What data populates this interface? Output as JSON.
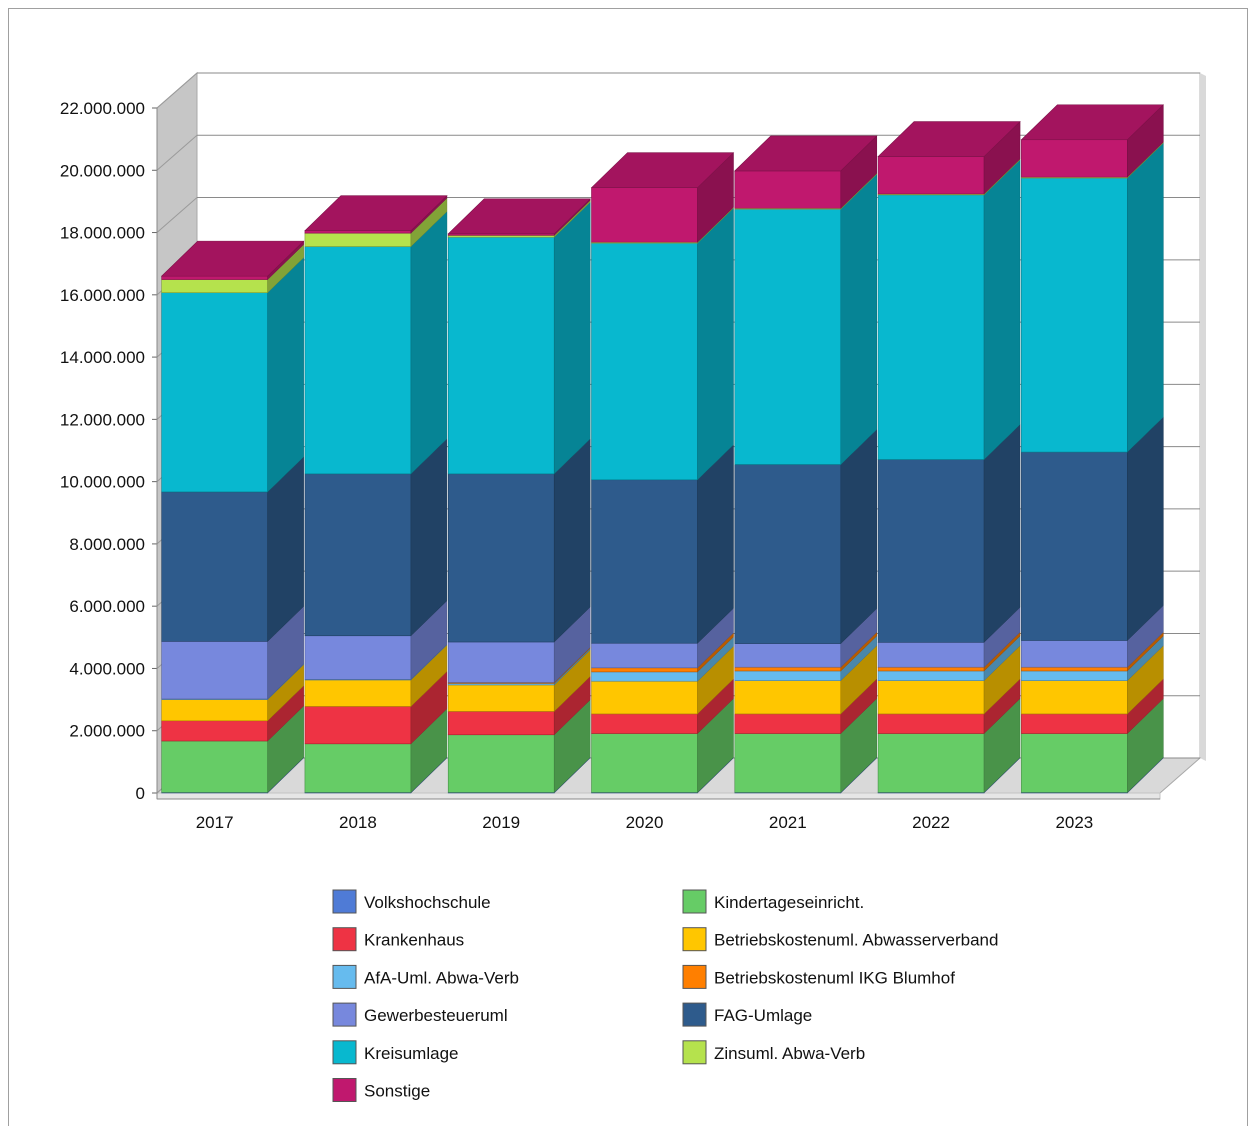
{
  "chart_data": {
    "type": "bar",
    "stacked": true,
    "three_d": true,
    "categories": [
      "2017",
      "2018",
      "2019",
      "2020",
      "2021",
      "2022",
      "2023"
    ],
    "ylim": [
      0,
      22000000
    ],
    "y_ticks": [
      0,
      2000000,
      4000000,
      6000000,
      8000000,
      10000000,
      12000000,
      14000000,
      16000000,
      18000000,
      20000000,
      22000000
    ],
    "y_tick_labels": [
      "0",
      "2.000.000",
      "4.000.000",
      "6.000.000",
      "8.000.000",
      "10.000.000",
      "12.000.000",
      "14.000.000",
      "16.000.000",
      "18.000.000",
      "20.000.000",
      "22.000.000"
    ],
    "grid": true,
    "legend_position": "bottom",
    "series": [
      {
        "name": "Volkshochschule",
        "color": "#4f7bd6",
        "values": [
          20000,
          20000,
          20000,
          20000,
          20000,
          20000,
          20000
        ]
      },
      {
        "name": "Kindertageseinricht.",
        "color": "#66cc66",
        "values": [
          1650000,
          1560000,
          1850000,
          1890000,
          1890000,
          1890000,
          1890000
        ]
      },
      {
        "name": "Krankenhaus",
        "color": "#ee3344",
        "values": [
          650000,
          1200000,
          750000,
          630000,
          630000,
          630000,
          630000
        ]
      },
      {
        "name": "Betriebskostenuml. Abwasserverband",
        "color": "#ffc600",
        "values": [
          680000,
          850000,
          850000,
          1050000,
          1070000,
          1070000,
          1070000
        ]
      },
      {
        "name": "AfA-Uml. Abwa-Verb",
        "color": "#66bbee",
        "values": [
          20000,
          20000,
          50000,
          300000,
          310000,
          310000,
          310000
        ]
      },
      {
        "name": "Betriebskostenuml IKG Blumhof",
        "color": "#ff7f00",
        "values": [
          0,
          0,
          30000,
          130000,
          120000,
          120000,
          120000
        ]
      },
      {
        "name": "Gewerbesteueruml",
        "color": "#7788dd",
        "values": [
          1850000,
          1400000,
          1300000,
          790000,
          760000,
          800000,
          860000
        ]
      },
      {
        "name": "FAG-Umlage",
        "color": "#2e5b8c",
        "values": [
          4800000,
          5200000,
          5400000,
          5250000,
          5750000,
          5870000,
          6050000
        ]
      },
      {
        "name": "Kreisumlage",
        "color": "#08b8cf",
        "values": [
          6400000,
          7300000,
          7600000,
          7600000,
          8200000,
          8500000,
          8800000
        ]
      },
      {
        "name": "Zinsuml. Abwa-Verb",
        "color": "#b5e24d",
        "values": [
          420000,
          430000,
          60000,
          30000,
          30000,
          30000,
          30000
        ]
      },
      {
        "name": "Sonstige",
        "color": "#c0186e",
        "values": [
          110000,
          80000,
          50000,
          1750000,
          1200000,
          1200000,
          1200000
        ]
      }
    ]
  }
}
